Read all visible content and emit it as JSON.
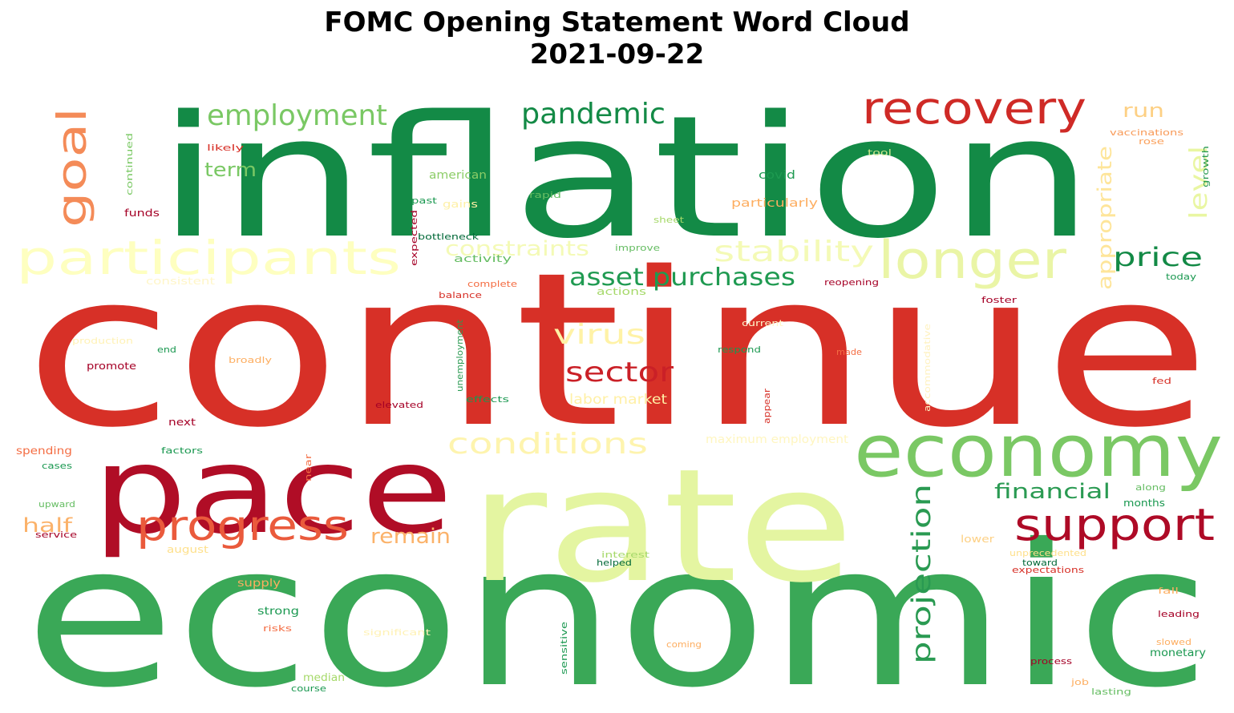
{
  "title": {
    "line1": "FOMC Opening Statement Word Cloud",
    "line2": "2021-09-22"
  },
  "palette": "RdYlGn",
  "words": [
    {
      "text": "continue",
      "size": "xl",
      "color": "#d73027",
      "rot": 0
    },
    {
      "text": "inflation",
      "size": "xl",
      "color": "#138a46",
      "rot": 0
    },
    {
      "text": "economic",
      "size": "xl",
      "color": "#3aa857",
      "rot": 0
    },
    {
      "text": "rate",
      "size": "xl",
      "color": "#e4f5a1",
      "rot": 0
    },
    {
      "text": "pace",
      "size": "l",
      "color": "#b00d26",
      "rot": 0
    },
    {
      "text": "economy",
      "size": "l",
      "color": "#7ac864",
      "rot": 0
    },
    {
      "text": "participants",
      "size": "m",
      "color": "#feffc0",
      "rot": 0
    },
    {
      "text": "longer",
      "size": "m",
      "color": "#eaf5a6",
      "rot": 0
    },
    {
      "text": "recovery",
      "size": "m",
      "color": "#cf2a26",
      "rot": 0
    },
    {
      "text": "progress",
      "size": "m",
      "color": "#ea5a3c",
      "rot": 0
    },
    {
      "text": "support",
      "size": "m",
      "color": "#ae0a26",
      "rot": 0
    },
    {
      "text": "goal",
      "size": "m",
      "color": "#f48b58",
      "rot": 270
    },
    {
      "text": "employment",
      "size": "s",
      "color": "#7ac864",
      "rot": 0
    },
    {
      "text": "pandemic",
      "size": "s",
      "color": "#138a46",
      "rot": 0
    },
    {
      "text": "stability",
      "size": "s",
      "color": "#f4fab6",
      "rot": 0
    },
    {
      "text": "conditions",
      "size": "s",
      "color": "#fef4ae",
      "rot": 0
    },
    {
      "text": "sector",
      "size": "s",
      "color": "#ca2027",
      "rot": 0
    },
    {
      "text": "virus",
      "size": "s",
      "color": "#fff2a6",
      "rot": 0
    },
    {
      "text": "asset purchases",
      "size": "s",
      "color": "#1f9a51",
      "rot": 0
    },
    {
      "text": "price",
      "size": "s",
      "color": "#138a46",
      "rot": 0
    },
    {
      "text": "projection",
      "size": "s",
      "color": "#2a9a52",
      "rot": 270
    },
    {
      "text": "financial",
      "size": "s",
      "color": "#2a9a52",
      "rot": 0
    },
    {
      "text": "remain",
      "size": "s",
      "color": "#fbb26a",
      "rot": 0
    },
    {
      "text": "half",
      "size": "s",
      "color": "#fbb26a",
      "rot": 0
    },
    {
      "text": "constraints",
      "size": "s",
      "color": "#f4fab6",
      "rot": 0
    },
    {
      "text": "term",
      "size": "s",
      "color": "#7ac864",
      "rot": 0
    },
    {
      "text": "level",
      "size": "s",
      "color": "#e9f6a2",
      "rot": 270
    },
    {
      "text": "appropriate",
      "size": "s",
      "color": "#fee59a",
      "rot": 270
    },
    {
      "text": "run",
      "size": "s",
      "color": "#fdd084",
      "rot": 0
    },
    {
      "text": "labor market",
      "size": "xs",
      "color": "#fff0a6",
      "rot": 0
    },
    {
      "text": "maximum employment",
      "size": "xs",
      "color": "#fff6c0",
      "rot": 0
    },
    {
      "text": "american",
      "size": "xs",
      "color": "#8ccd67",
      "rot": 0
    },
    {
      "text": "covid",
      "size": "xs",
      "color": "#1e9a51",
      "rot": 0
    },
    {
      "text": "particularly",
      "size": "xs",
      "color": "#fdae61",
      "rot": 0
    },
    {
      "text": "unemployment",
      "size": "xxs",
      "color": "#2a9a52",
      "rot": 270
    },
    {
      "text": "vaccinations",
      "size": "xxs",
      "color": "#f89a58",
      "rot": 0
    },
    {
      "text": "rose",
      "size": "xxs",
      "color": "#fba05b",
      "rot": 0
    },
    {
      "text": "growth",
      "size": "xxs",
      "color": "#2a9a52",
      "rot": 270
    },
    {
      "text": "tool",
      "size": "xxs",
      "color": "#cfe88e",
      "rot": 0
    },
    {
      "text": "likely",
      "size": "xxs",
      "color": "#d73027",
      "rot": 0
    },
    {
      "text": "continued",
      "size": "xxs",
      "color": "#7ac864",
      "rot": 270
    },
    {
      "text": "funds",
      "size": "xxs",
      "color": "#a50026",
      "rot": 0
    },
    {
      "text": "past",
      "size": "xxs",
      "color": "#1a9850",
      "rot": 0
    },
    {
      "text": "gains",
      "size": "xxs",
      "color": "#fef0a6",
      "rot": 0
    },
    {
      "text": "rapid",
      "size": "xxs",
      "color": "#66bd63",
      "rot": 0
    },
    {
      "text": "sheet",
      "size": "xxs",
      "color": "#a6d96a",
      "rot": 0
    },
    {
      "text": "expected",
      "size": "xxs",
      "color": "#a50026",
      "rot": 270
    },
    {
      "text": "bottleneck",
      "size": "xxs",
      "color": "#006837",
      "rot": 0
    },
    {
      "text": "activity",
      "size": "xxs",
      "color": "#66bd63",
      "rot": 0
    },
    {
      "text": "improve",
      "size": "xxs",
      "color": "#66bd63",
      "rot": 0
    },
    {
      "text": "consistent",
      "size": "xxs",
      "color": "#fff6c8",
      "rot": 0
    },
    {
      "text": "complete",
      "size": "xxs",
      "color": "#f46d43",
      "rot": 0
    },
    {
      "text": "balance",
      "size": "xxs",
      "color": "#d73027",
      "rot": 0
    },
    {
      "text": "actions",
      "size": "xxs",
      "color": "#a6d96a",
      "rot": 0
    },
    {
      "text": "reopening",
      "size": "xxs",
      "color": "#a50026",
      "rot": 0
    },
    {
      "text": "today",
      "size": "xxs",
      "color": "#1a9850",
      "rot": 0
    },
    {
      "text": "foster",
      "size": "xxs",
      "color": "#a50026",
      "rot": 0
    },
    {
      "text": "current",
      "size": "xxs",
      "color": "#fff6c8",
      "rot": 0
    },
    {
      "text": "production",
      "size": "xxs",
      "color": "#fff2b6",
      "rot": 0
    },
    {
      "text": "end",
      "size": "xxs",
      "color": "#1a9850",
      "rot": 0
    },
    {
      "text": "broadly",
      "size": "xxs",
      "color": "#fdae61",
      "rot": 0
    },
    {
      "text": "respond",
      "size": "xxs",
      "color": "#1a9850",
      "rot": 0
    },
    {
      "text": "made",
      "size": "xxs",
      "color": "#f46d43",
      "rot": 0
    },
    {
      "text": "accommodative",
      "size": "xxs",
      "color": "#fff2c0",
      "rot": 270
    },
    {
      "text": "promote",
      "size": "xxs",
      "color": "#a50026",
      "rot": 0
    },
    {
      "text": "elevated",
      "size": "xxs",
      "color": "#a50026",
      "rot": 0
    },
    {
      "text": "effects",
      "size": "xxs",
      "color": "#1a9850",
      "rot": 0
    },
    {
      "text": "appear",
      "size": "xxs",
      "color": "#d73027",
      "rot": 270
    },
    {
      "text": "fed",
      "size": "xxs",
      "color": "#d73027",
      "rot": 0
    },
    {
      "text": "next",
      "size": "xxs",
      "color": "#a50026",
      "rot": 0
    },
    {
      "text": "spending",
      "size": "xxs",
      "color": "#f46d43",
      "rot": 0
    },
    {
      "text": "factors",
      "size": "xxs",
      "color": "#1a9850",
      "rot": 0
    },
    {
      "text": "cases",
      "size": "xxs",
      "color": "#1a9850",
      "rot": 0
    },
    {
      "text": "near",
      "size": "xxs",
      "color": "#f46d43",
      "rot": 270
    },
    {
      "text": "along",
      "size": "xxs",
      "color": "#66bd63",
      "rot": 0
    },
    {
      "text": "months",
      "size": "xxs",
      "color": "#1a9850",
      "rot": 0
    },
    {
      "text": "upward",
      "size": "xxs",
      "color": "#66bd63",
      "rot": 0
    },
    {
      "text": "service",
      "size": "xxs",
      "color": "#a50026",
      "rot": 0
    },
    {
      "text": "august",
      "size": "xxs",
      "color": "#fee08b",
      "rot": 0
    },
    {
      "text": "lower",
      "size": "xxs",
      "color": "#fdd084",
      "rot": 0
    },
    {
      "text": "interest",
      "size": "xxs",
      "color": "#a6d96a",
      "rot": 0
    },
    {
      "text": "helped",
      "size": "xxs",
      "color": "#006837",
      "rot": 0
    },
    {
      "text": "unprecedented",
      "size": "xxs",
      "color": "#fee08b",
      "rot": 0
    },
    {
      "text": "toward",
      "size": "xxs",
      "color": "#006837",
      "rot": 0
    },
    {
      "text": "expectations",
      "size": "xxs",
      "color": "#d73027",
      "rot": 0
    },
    {
      "text": "supply",
      "size": "xxs",
      "color": "#fdae61",
      "rot": 0
    },
    {
      "text": "strong",
      "size": "xxs",
      "color": "#1a9850",
      "rot": 0
    },
    {
      "text": "risks",
      "size": "xxs",
      "color": "#f46d43",
      "rot": 0
    },
    {
      "text": "significant",
      "size": "xxs",
      "color": "#fff2b6",
      "rot": 0
    },
    {
      "text": "sensitive",
      "size": "xxs",
      "color": "#1a9850",
      "rot": 270
    },
    {
      "text": "coming",
      "size": "xxs",
      "color": "#fdae61",
      "rot": 0
    },
    {
      "text": "fall",
      "size": "xxs",
      "color": "#fdae61",
      "rot": 0
    },
    {
      "text": "leading",
      "size": "xxs",
      "color": "#a50026",
      "rot": 0
    },
    {
      "text": "slowed",
      "size": "xxs",
      "color": "#fdae61",
      "rot": 0
    },
    {
      "text": "monetary",
      "size": "xxs",
      "color": "#1a9850",
      "rot": 0
    },
    {
      "text": "median",
      "size": "xxs",
      "color": "#a6d96a",
      "rot": 0
    },
    {
      "text": "course",
      "size": "xxs",
      "color": "#1a9850",
      "rot": 0
    },
    {
      "text": "process",
      "size": "xxs",
      "color": "#a50026",
      "rot": 0
    },
    {
      "text": "job",
      "size": "xxs",
      "color": "#fdae61",
      "rot": 0
    },
    {
      "text": "lasting",
      "size": "xxs",
      "color": "#66bd63",
      "rot": 0
    }
  ]
}
